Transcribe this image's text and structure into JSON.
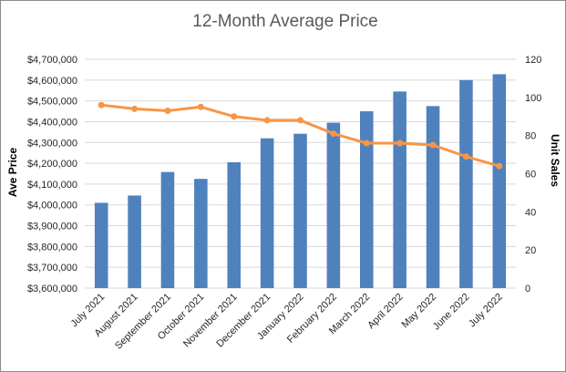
{
  "chart_data": {
    "type": "bar",
    "title": "12-Month Average Price",
    "ylabel": "Ave Price",
    "y2label": "Unit Sales",
    "categories": [
      "July 2021",
      "August 2021",
      "September 2021",
      "October 2021",
      "November 2021",
      "December 2021",
      "January 2022",
      "February 2022",
      "March 2022",
      "April 2022",
      "May 2022",
      "June 2022",
      "July 2022"
    ],
    "series": [
      {
        "type": "bar",
        "axis": "left",
        "color": "#4f81bd",
        "values": [
          4010000,
          4045000,
          4158000,
          4125000,
          4205000,
          4320000,
          4342000,
          4395000,
          4450000,
          4545000,
          4475000,
          4600000,
          4628000
        ]
      },
      {
        "type": "line",
        "axis": "right",
        "color": "#f79646",
        "values": [
          96,
          94,
          93,
          95,
          90,
          88,
          88,
          81,
          76,
          76,
          75,
          69,
          64
        ]
      }
    ],
    "ylim": [
      3600000,
      4700000
    ],
    "y2lim": [
      0,
      120
    ],
    "yticks": [
      "$3,600,000",
      "$3,700,000",
      "$3,800,000",
      "$3,900,000",
      "$4,000,000",
      "$4,100,000",
      "$4,200,000",
      "$4,300,000",
      "$4,400,000",
      "$4,500,000",
      "$4,600,000",
      "$4,700,000"
    ],
    "y2ticks": [
      "0",
      "20",
      "40",
      "60",
      "80",
      "100",
      "120"
    ],
    "grid": true,
    "legend": "none"
  }
}
